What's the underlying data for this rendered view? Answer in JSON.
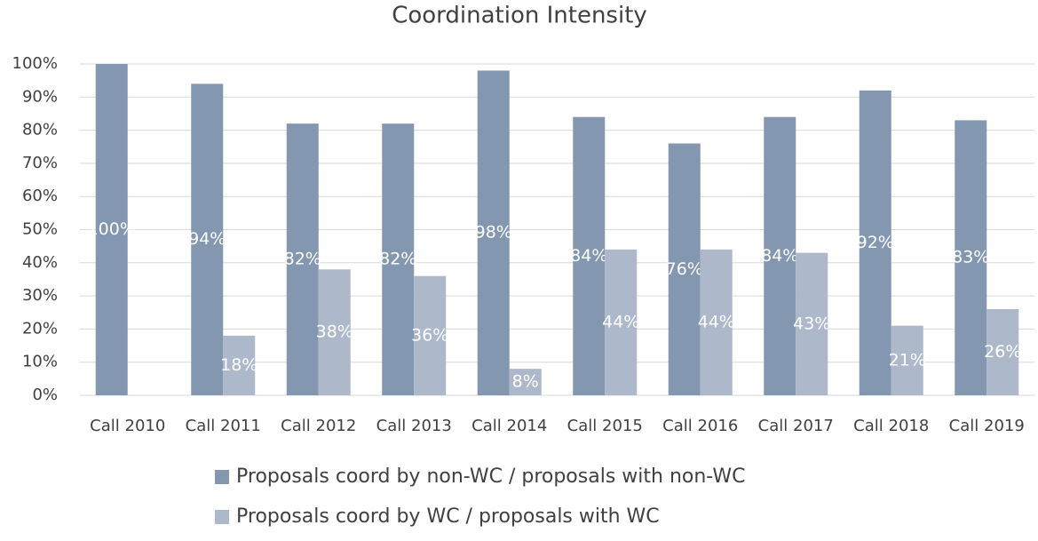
{
  "chart_data": {
    "type": "bar",
    "title": "Coordination Intensity",
    "categories": [
      "Call 2010",
      "Call 2011",
      "Call 2012",
      "Call 2013",
      "Call 2014",
      "Call 2015",
      "Call 2016",
      "Call 2017",
      "Call 2018",
      "Call 2019"
    ],
    "series": [
      {
        "name": "Proposals coord by non-WC / proposals with non-WC",
        "color": "#8497b0",
        "values": [
          100,
          94,
          82,
          82,
          98,
          84,
          76,
          84,
          92,
          83
        ],
        "value_labels": [
          "100%",
          "94%",
          "82%",
          "82%",
          "98%",
          "84%",
          "76%",
          "84%",
          "92%",
          "83%"
        ]
      },
      {
        "name": "Proposals coord by WC / proposals with WC",
        "color": "#adb9ca",
        "values": [
          null,
          18,
          38,
          36,
          8,
          44,
          44,
          43,
          21,
          26
        ],
        "value_labels": [
          null,
          "18%",
          "38%",
          "36%",
          "8%",
          "44%",
          "44%",
          "43%",
          "21%",
          "26%"
        ]
      }
    ],
    "ylim": [
      0,
      100
    ],
    "yticks": [
      {
        "value": 0,
        "label": "0%"
      },
      {
        "value": 10,
        "label": "10%"
      },
      {
        "value": 20,
        "label": "20%"
      },
      {
        "value": 30,
        "label": "30%"
      },
      {
        "value": 40,
        "label": "40%"
      },
      {
        "value": 50,
        "label": "50%"
      },
      {
        "value": 60,
        "label": "60%"
      },
      {
        "value": 70,
        "label": "70%"
      },
      {
        "value": 80,
        "label": "80%"
      },
      {
        "value": 90,
        "label": "90%"
      },
      {
        "value": 100,
        "label": "100%"
      }
    ],
    "grid": true,
    "legend": "bottom"
  }
}
